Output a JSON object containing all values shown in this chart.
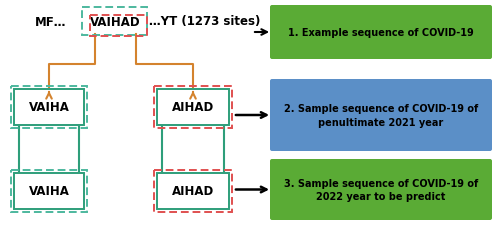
{
  "fig_width": 5.0,
  "fig_height": 2.26,
  "dpi": 100,
  "bg_color": "#ffffff",
  "green_box_color": "#5aab35",
  "blue_box_color": "#5b8fc7",
  "green_dashed_color": "#4db89e",
  "red_dashed_color": "#e05050",
  "orange_line_color": "#d4832e",
  "dark_green_solid_color": "#2e9e7a",
  "box1_label": "1. Example sequence of COVID-19",
  "box2_label": "2. Sample sequence of COVID-19 of\npenultimate 2021 year",
  "box3_label": "3. Sample sequence of COVID-19 of\n2022 year to be predict",
  "left_green_label": "VAIHA",
  "right_red_label": "AIHAD"
}
